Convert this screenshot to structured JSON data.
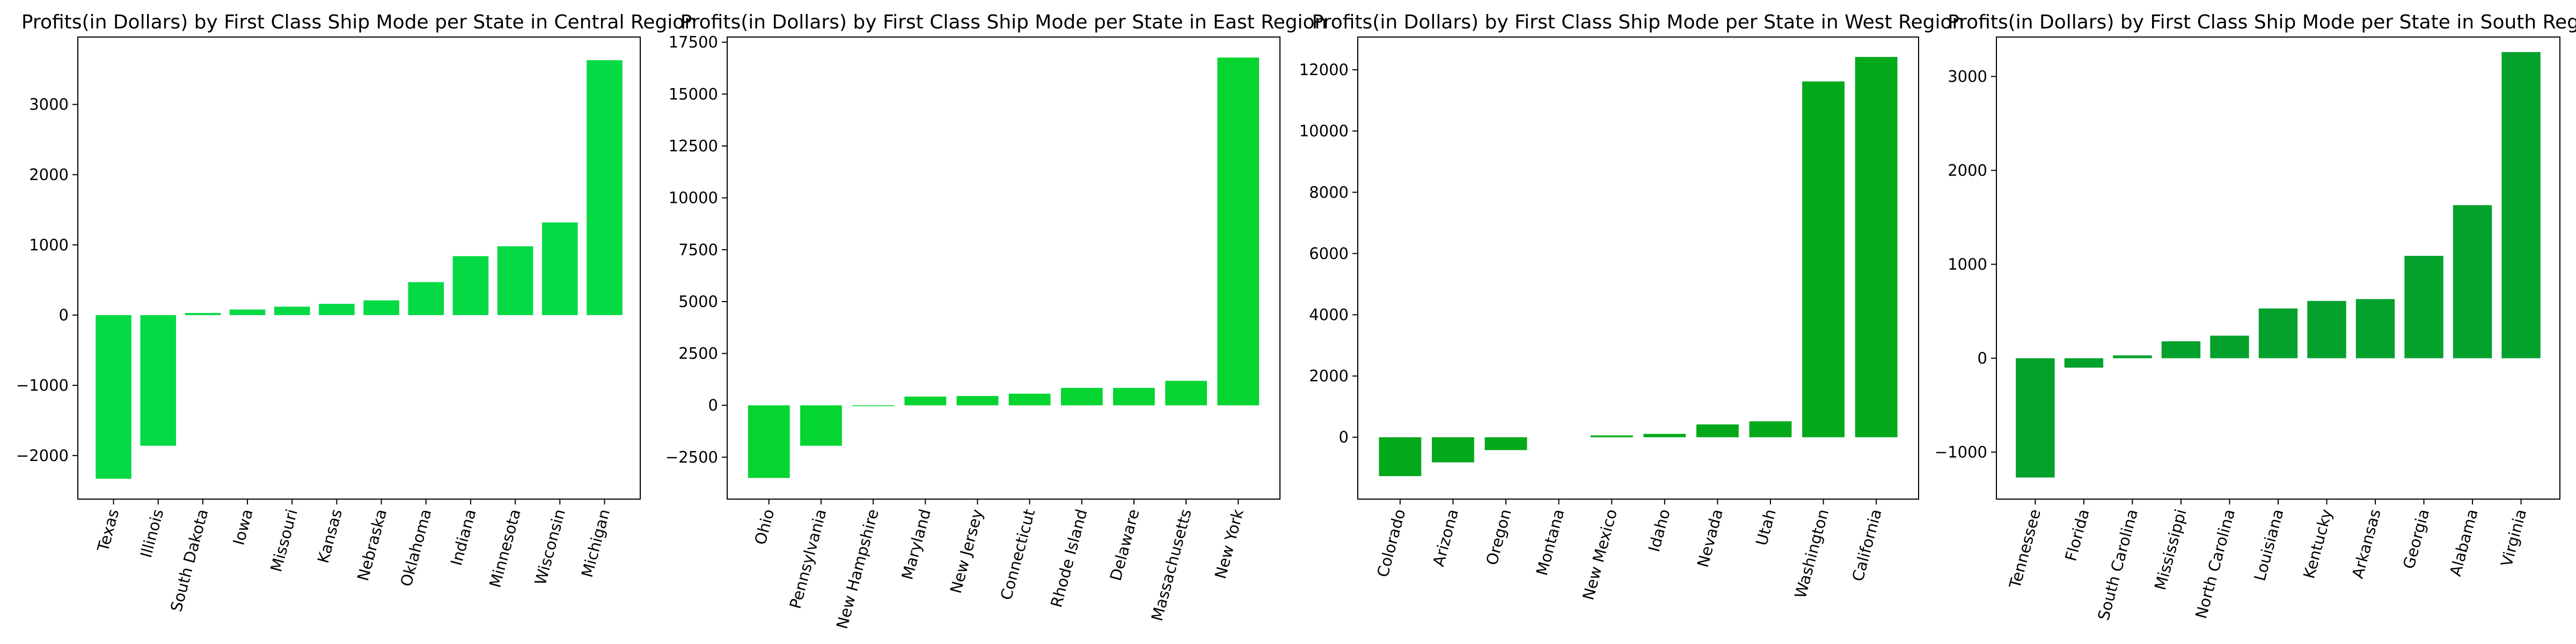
{
  "chart_data": [
    {
      "type": "bar",
      "title": "Profits(in Dollars) by First Class Ship Mode per State in Central Region",
      "color": "#05d944",
      "categories": [
        "Texas",
        "Illinois",
        "South Dakota",
        "Iowa",
        "Missouri",
        "Kansas",
        "Nebraska",
        "Oklahoma",
        "Indiana",
        "Minnesota",
        "Wisconsin",
        "Michigan"
      ],
      "values": [
        -2330,
        -1860,
        30,
        80,
        120,
        160,
        210,
        470,
        840,
        980,
        1320,
        3630
      ],
      "ylim": [
        -2620,
        3960
      ],
      "yticks": [
        -2000,
        -1000,
        0,
        1000,
        2000,
        3000
      ],
      "ytick_labels": [
        "−2000",
        "−1000",
        "0",
        "1000",
        "2000",
        "3000"
      ],
      "xlabel": "",
      "ylabel": ""
    },
    {
      "type": "bar",
      "title": "Profits(in Dollars) by First Class Ship Mode per State in East Region",
      "color": "#05d431",
      "categories": [
        "Ohio",
        "Pennsylvania",
        "New Hampshire",
        "Maryland",
        "New Jersey",
        "Connecticut",
        "Rhode Island",
        "Delaware",
        "Massachusetts",
        "New York"
      ],
      "values": [
        -3500,
        -1950,
        -40,
        420,
        450,
        560,
        840,
        840,
        1180,
        16760
      ],
      "ylim": [
        -4520,
        17750
      ],
      "yticks": [
        -2500,
        0,
        2500,
        5000,
        7500,
        10000,
        12500,
        15000,
        17500
      ],
      "ytick_labels": [
        "−2500",
        "0",
        "2500",
        "5000",
        "7500",
        "10000",
        "12500",
        "15000",
        "17500"
      ],
      "xlabel": "",
      "ylabel": ""
    },
    {
      "type": "bar",
      "title": "Profits(in Dollars) by First Class Ship Mode per State in West Region",
      "color": "#04a91b",
      "categories": [
        "Colorado",
        "Arizona",
        "Oregon",
        "Montana",
        "New Mexico",
        "Idaho",
        "Nevada",
        "Utah",
        "Washington",
        "California"
      ],
      "values": [
        -1270,
        -820,
        -420,
        0,
        60,
        110,
        420,
        520,
        11620,
        12420
      ],
      "ylim": [
        -2020,
        13070
      ],
      "yticks": [
        0,
        2000,
        4000,
        6000,
        8000,
        10000,
        12000
      ],
      "ytick_labels": [
        "0",
        "2000",
        "4000",
        "6000",
        "8000",
        "10000",
        "12000"
      ],
      "xlabel": "",
      "ylabel": ""
    },
    {
      "type": "bar",
      "title": "Profits(in Dollars) by First Class Ship Mode per State in South Region",
      "color": "#05a12d",
      "categories": [
        "Tennessee",
        "Florida",
        "South Carolina",
        "Mississippi",
        "North Carolina",
        "Louisiana",
        "Kentucky",
        "Arkansas",
        "Georgia",
        "Alabama",
        "Virginia"
      ],
      "values": [
        -1270,
        -100,
        30,
        180,
        240,
        530,
        610,
        630,
        1090,
        1630,
        3260
      ],
      "ylim": [
        -1500,
        3420
      ],
      "yticks": [
        -1000,
        0,
        1000,
        2000,
        3000
      ],
      "ytick_labels": [
        "−1000",
        "0",
        "1000",
        "2000",
        "3000"
      ],
      "xlabel": "",
      "ylabel": ""
    }
  ]
}
